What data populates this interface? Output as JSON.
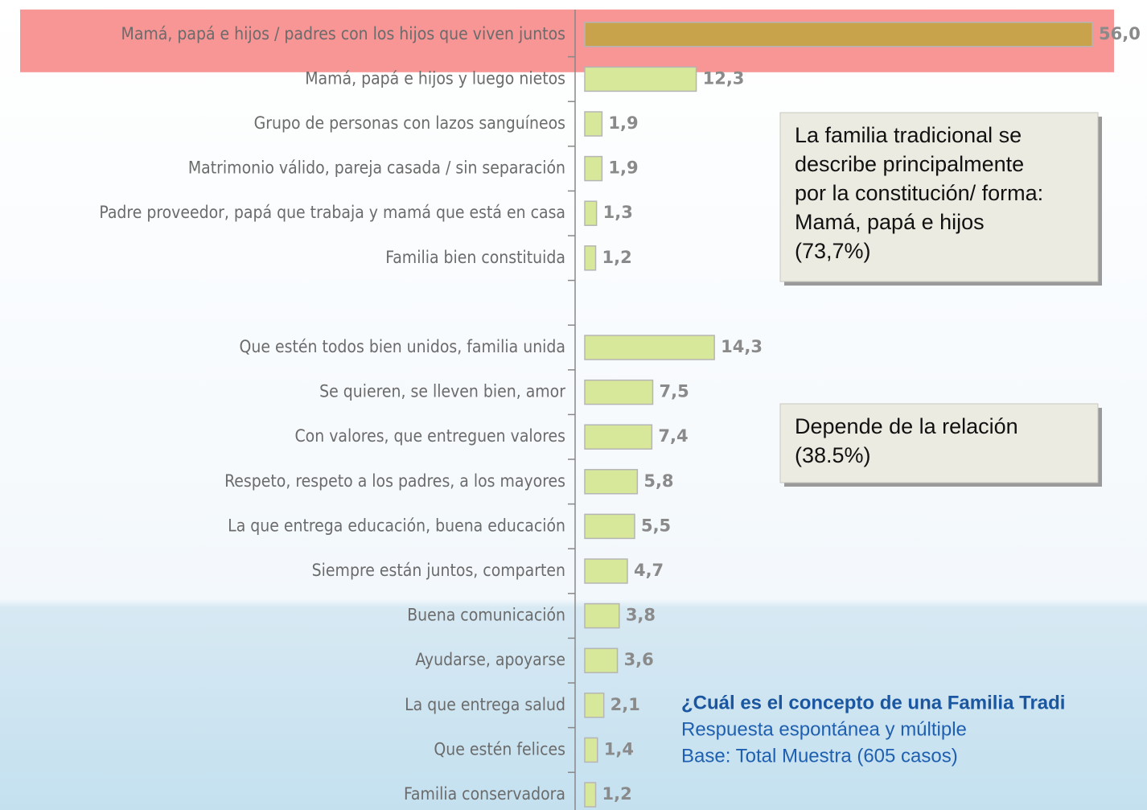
{
  "chart_data": {
    "type": "bar",
    "orientation": "horizontal",
    "categories": [
      "Mamá, papá e hijos / padres con los hijos que viven juntos",
      "Mamá, papá e hijos y luego nietos",
      "Grupo de personas con lazos sanguíneos",
      "Matrimonio válido, pareja casada / sin separación",
      "Padre proveedor, papá que trabaja y mamá que está en casa",
      "Familia bien constituida",
      null,
      "Que estén todos bien unidos, familia unida",
      "Se quieren, se lleven bien, amor",
      "Con valores, que entreguen valores",
      "Respeto, respeto a los padres, a los mayores",
      "La que entrega educación, buena educación",
      "Siempre están juntos, comparten",
      "Buena comunicación",
      "Ayudarse, apoyarse",
      "La que entrega salud",
      "Que estén felices",
      "Familia conservadora"
    ],
    "values": [
      56.0,
      12.3,
      1.9,
      1.9,
      1.3,
      1.2,
      null,
      14.3,
      7.5,
      7.4,
      5.8,
      5.5,
      4.7,
      3.8,
      3.6,
      2.1,
      1.4,
      1.2
    ],
    "value_labels": [
      "56,0",
      "12,3",
      "1,9",
      "1,9",
      "1,3",
      "1,2",
      null,
      "14,3",
      "7,5",
      "7,4",
      "5,8",
      "5,5",
      "4,7",
      "3,8",
      "3,6",
      "2,1",
      "1,4",
      "1,2"
    ],
    "color": "#d8e89a",
    "highlight_index": 0,
    "highlight_color": "#c9a24c",
    "highlight_band_color": "#f89595",
    "annotations": [
      [
        "La familia tradicional se",
        "describe principalmente",
        "por la constitución/ forma:",
        "Mamá, papá e hijos",
        "(73,7%)"
      ],
      [
        "Depende de la relación",
        "(38.5%)"
      ]
    ],
    "note": {
      "title": "¿Cuál es el concepto de una Familia Tradi",
      "lines": [
        "Respuesta espontánea   y múltiple",
        "Base: Total Muestra (605 casos)"
      ]
    }
  }
}
